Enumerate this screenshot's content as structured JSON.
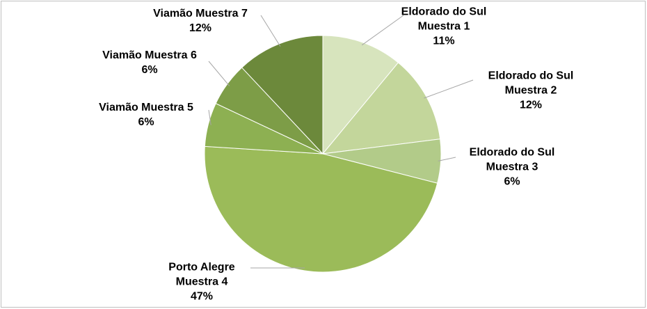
{
  "chart_data": {
    "type": "pie",
    "categories": [
      "Eldorado do Sul Muestra 1",
      "Eldorado do Sul Muestra 2",
      "Eldorado do Sul Muestra 3",
      "Porto Alegre Muestra 4",
      "Viamão Muestra 5",
      "Viamão Muestra 6",
      "Viamão Muestra 7"
    ],
    "values": [
      11,
      12,
      6,
      47,
      6,
      6,
      12
    ],
    "value_labels": [
      "11%",
      "12%",
      "6%",
      "47%",
      "6%",
      "6%",
      "12%"
    ],
    "colors": [
      "#d7e4bd",
      "#c3d69b",
      "#b2cb89",
      "#9bbb59",
      "#8db052",
      "#7d9d47",
      "#6c893b"
    ]
  }
}
